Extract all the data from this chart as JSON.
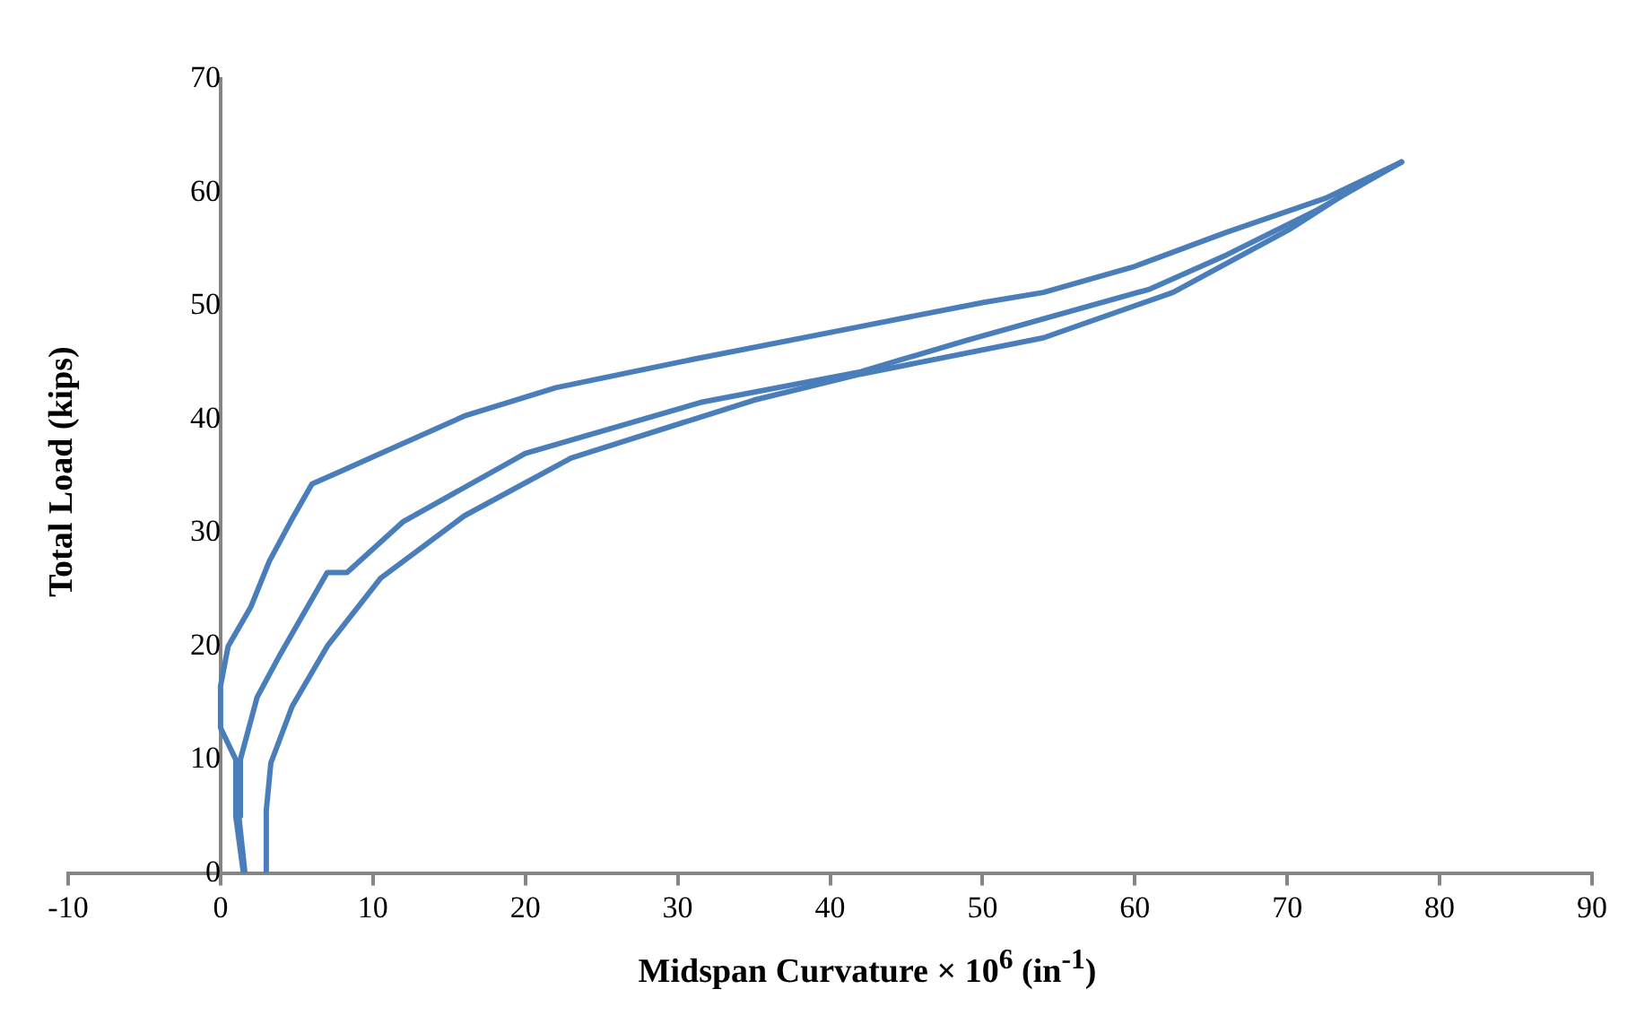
{
  "chart_data": {
    "type": "line",
    "xlabel": "Midspan Curvature × 10$^{6}$ (in$^{-1}$)",
    "ylabel": "Total Load (kips)",
    "xlim": [
      -10,
      90
    ],
    "xticks": [
      -10,
      0,
      10,
      20,
      30,
      40,
      50,
      60,
      70,
      80,
      90
    ],
    "ylim": [
      0,
      70
    ],
    "yticks": [
      0,
      10,
      20,
      30,
      40,
      50,
      60,
      70
    ],
    "grid": false,
    "legend": false,
    "marker": "none",
    "line_style": "solid",
    "series": [
      {
        "color": "#4a7ebb",
        "x": [
          3,
          3,
          3.3,
          4.7,
          7,
          10.5,
          16,
          23,
          31,
          35,
          42,
          54,
          62.5,
          70.2,
          74.5,
          77.5
        ],
        "values": [
          0,
          5.5,
          9.7,
          14.7,
          20,
          26,
          31.5,
          36.6,
          40,
          41.7,
          44,
          47.2,
          51.2,
          56.8,
          60.5,
          62.7
        ]
      },
      {
        "color": "#4a7ebb",
        "x": [
          1.6,
          1.2,
          1.3,
          2.4,
          3.8,
          7,
          8.3,
          12,
          20,
          31.5,
          42,
          49,
          61,
          66,
          72,
          77.5
        ],
        "values": [
          0,
          5,
          10,
          15.5,
          19,
          26.5,
          26.5,
          31,
          37,
          41.5,
          44.2,
          47,
          51.5,
          54.5,
          58.5,
          62.7
        ]
      },
      {
        "color": "#4a7ebb",
        "x": [
          1.5,
          1,
          1,
          0,
          0,
          0.5,
          2,
          3.2,
          4.6,
          6,
          8,
          16,
          22,
          31,
          42,
          50,
          54,
          60,
          66,
          72.5,
          77.5
        ],
        "values": [
          0,
          5,
          10,
          12.8,
          16.5,
          20,
          23.5,
          27.5,
          31,
          34.3,
          35.5,
          40.3,
          42.8,
          45.3,
          48.2,
          50.3,
          51.2,
          53.5,
          56.5,
          59.5,
          62.7
        ]
      }
    ]
  }
}
